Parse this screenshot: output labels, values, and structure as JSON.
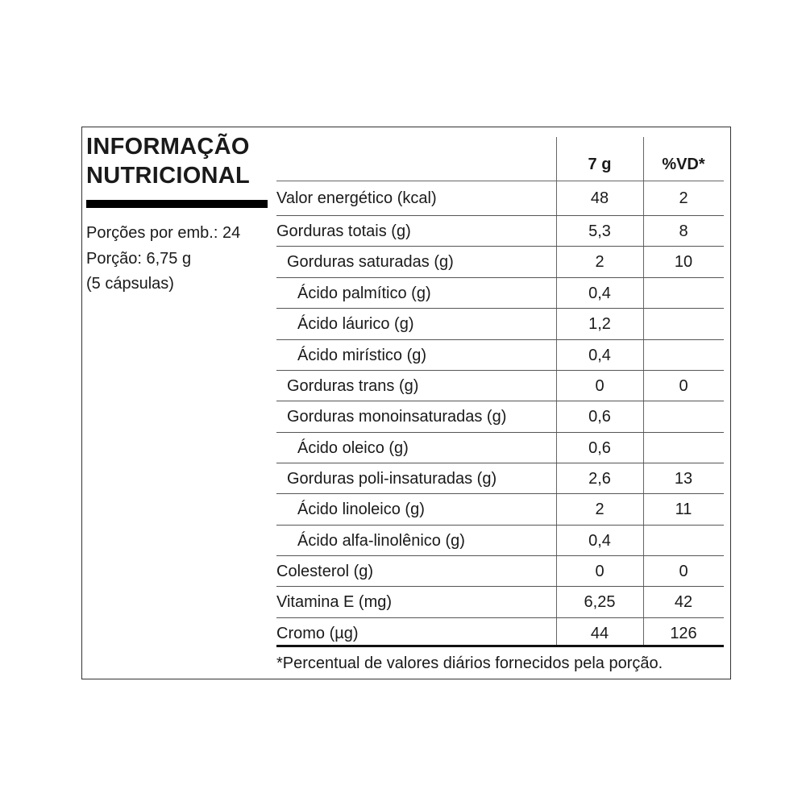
{
  "title_line1": "INFORMAÇÃO",
  "title_line2": "NUTRICIONAL",
  "servings_per_package": "Porções por emb.: 24",
  "serving_size": "Porção: 6,75 g",
  "serving_units": "(5 cápsulas)",
  "columns": {
    "amount": "7 g",
    "dv": "%VD*"
  },
  "rows": [
    {
      "label": "Valor energético (kcal)",
      "amount": "48",
      "dv": "2",
      "indent": 0
    },
    {
      "label": "Gorduras totais (g)",
      "amount": "5,3",
      "dv": "8",
      "indent": 0
    },
    {
      "label": "Gorduras saturadas (g)",
      "amount": "2",
      "dv": "10",
      "indent": 1
    },
    {
      "label": "Ácido palmítico (g)",
      "amount": "0,4",
      "dv": "",
      "indent": 2
    },
    {
      "label": "Ácido láurico (g)",
      "amount": "1,2",
      "dv": "",
      "indent": 2
    },
    {
      "label": "Ácido mirístico (g)",
      "amount": "0,4",
      "dv": "",
      "indent": 2
    },
    {
      "label": "Gorduras trans (g)",
      "amount": "0",
      "dv": "0",
      "indent": 1
    },
    {
      "label": "Gorduras monoinsaturadas (g)",
      "amount": "0,6",
      "dv": "",
      "indent": 1
    },
    {
      "label": "Ácido oleico (g)",
      "amount": "0,6",
      "dv": "",
      "indent": 2
    },
    {
      "label": "Gorduras poli-insaturadas (g)",
      "amount": "2,6",
      "dv": "13",
      "indent": 1
    },
    {
      "label": "Ácido linoleico (g)",
      "amount": "2",
      "dv": "11",
      "indent": 2
    },
    {
      "label": "Ácido alfa-linolênico (g)",
      "amount": "0,4",
      "dv": "",
      "indent": 2
    },
    {
      "label": "Colesterol (g)",
      "amount": "0",
      "dv": "0",
      "indent": 0
    },
    {
      "label": "Vitamina E (mg)",
      "amount": "6,25",
      "dv": "42",
      "indent": 0
    },
    {
      "label": "Cromo (µg)",
      "amount": "44",
      "dv": "126",
      "indent": 0
    }
  ],
  "footnote": "*Percentual de valores diários fornecidos pela porção."
}
